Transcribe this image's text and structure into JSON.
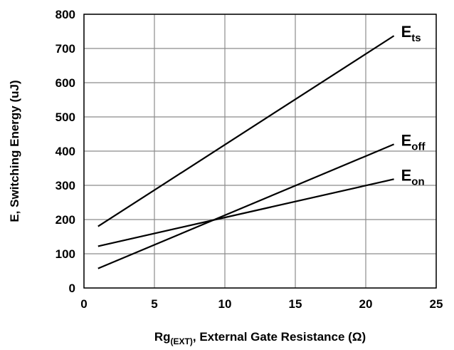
{
  "chart_data": {
    "type": "line",
    "title": "",
    "xlabel_main": "Rg",
    "xlabel_sub": "(EXT)",
    "xlabel_rest": ", External Gate Resistance (Ω)",
    "ylabel": "E, Switching Energy (uJ)",
    "xlim": [
      0,
      25
    ],
    "ylim": [
      0,
      800
    ],
    "xticks": [
      "0",
      "5",
      "10",
      "15",
      "20",
      "25"
    ],
    "yticks": [
      "0",
      "100",
      "200",
      "300",
      "400",
      "500",
      "600",
      "700",
      "800"
    ],
    "grid": true,
    "line_color": "#000000",
    "grid_color": "#8c8c8c",
    "series": [
      {
        "key": "ets",
        "name_main": "E",
        "name_sub": "ts",
        "x": [
          1,
          22
        ],
        "y": [
          180,
          737
        ]
      },
      {
        "key": "eoff",
        "name_main": "E",
        "name_sub": "off",
        "x": [
          1,
          22
        ],
        "y": [
          57,
          420
        ]
      },
      {
        "key": "eon",
        "name_main": "E",
        "name_sub": "on",
        "x": [
          1,
          22
        ],
        "y": [
          122,
          318
        ]
      }
    ]
  }
}
